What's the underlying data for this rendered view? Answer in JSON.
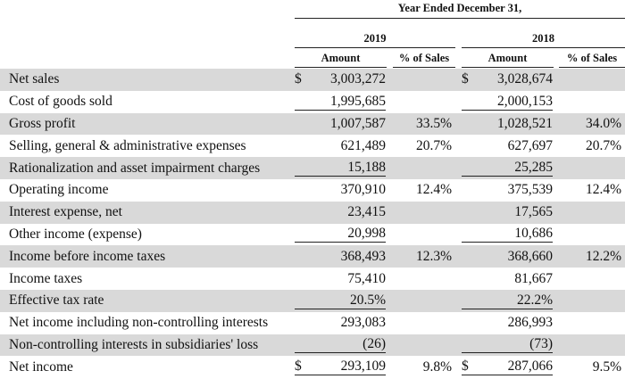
{
  "header": {
    "period": "Year Ended December 31,",
    "years": [
      "2019",
      "2018"
    ],
    "columns": [
      "Amount",
      "% of Sales",
      "Amount",
      "% of Sales"
    ]
  },
  "rows": [
    {
      "label": "Net sales",
      "cur1": "$",
      "a2019": "3,003,272",
      "p2019": "",
      "cur2": "$",
      "a2018": "3,028,674",
      "p2018": ""
    },
    {
      "label": "Cost of goods sold",
      "cur1": "",
      "a2019": "1,995,685",
      "p2019": "",
      "cur2": "",
      "a2018": "2,000,153",
      "p2018": ""
    },
    {
      "label": "Gross profit",
      "cur1": "",
      "a2019": "1,007,587",
      "p2019": "33.5%",
      "cur2": "",
      "a2018": "1,028,521",
      "p2018": "34.0%"
    },
    {
      "label": "Selling, general & administrative expenses",
      "cur1": "",
      "a2019": "621,489",
      "p2019": "20.7%",
      "cur2": "",
      "a2018": "627,697",
      "p2018": "20.7%"
    },
    {
      "label": "Rationalization and asset impairment charges",
      "cur1": "",
      "a2019": "15,188",
      "p2019": "",
      "cur2": "",
      "a2018": "25,285",
      "p2018": ""
    },
    {
      "label": "Operating income",
      "cur1": "",
      "a2019": "370,910",
      "p2019": "12.4%",
      "cur2": "",
      "a2018": "375,539",
      "p2018": "12.4%"
    },
    {
      "label": "Interest expense, net",
      "cur1": "",
      "a2019": "23,415",
      "p2019": "",
      "cur2": "",
      "a2018": "17,565",
      "p2018": ""
    },
    {
      "label": "Other income (expense)",
      "cur1": "",
      "a2019": "20,998",
      "p2019": "",
      "cur2": "",
      "a2018": "10,686",
      "p2018": ""
    },
    {
      "label": "Income before income taxes",
      "cur1": "",
      "a2019": "368,493",
      "p2019": "12.3%",
      "cur2": "",
      "a2018": "368,660",
      "p2018": "12.2%"
    },
    {
      "label": "Income taxes",
      "cur1": "",
      "a2019": "75,410",
      "p2019": "",
      "cur2": "",
      "a2018": "81,667",
      "p2018": ""
    },
    {
      "label": "Effective tax rate",
      "cur1": "",
      "a2019": "20.5%",
      "p2019": "",
      "cur2": "",
      "a2018": "22.2%",
      "p2018": ""
    },
    {
      "label": "Net income including non-controlling interests",
      "cur1": "",
      "a2019": "293,083",
      "p2019": "",
      "cur2": "",
      "a2018": "286,993",
      "p2018": ""
    },
    {
      "label": "Non-controlling interests in subsidiaries' loss",
      "cur1": "",
      "a2019": "(26)",
      "p2019": "",
      "cur2": "",
      "a2018": "(73)",
      "p2018": ""
    },
    {
      "label": "Net income",
      "cur1": "$",
      "a2019": "293,109",
      "p2019": "9.8%",
      "cur2": "$",
      "a2018": "287,066",
      "p2018": "9.5%"
    }
  ],
  "colors": {
    "shaded_row": "#d9d9d9"
  }
}
